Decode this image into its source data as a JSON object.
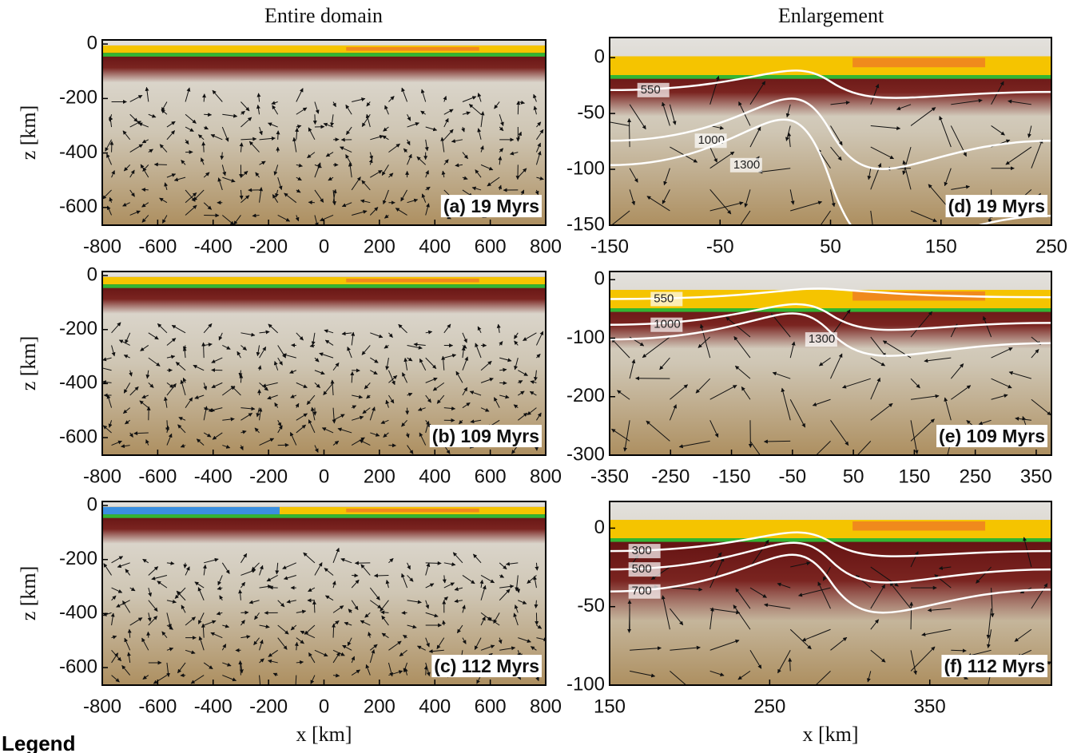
{
  "column_titles": [
    "Entire domain",
    "Enlargement"
  ],
  "legend_title": "Legend",
  "chart_data": [
    {
      "type": "field",
      "panel_label": "(a) 19 Myrs",
      "y_label": "z [km]",
      "xlim": [
        -800,
        800
      ],
      "ylim": [
        -665,
        15
      ],
      "xticks": [
        -800,
        -600,
        -400,
        -200,
        0,
        200,
        400,
        600,
        800
      ],
      "yticks": [
        0,
        -200,
        -400,
        -600
      ]
    },
    {
      "type": "field",
      "panel_label": "(b) 109 Myrs",
      "y_label": "z [km]",
      "xlim": [
        -800,
        800
      ],
      "ylim": [
        -665,
        15
      ],
      "xticks": [
        -800,
        -600,
        -400,
        -200,
        0,
        200,
        400,
        600,
        800
      ],
      "yticks": [
        0,
        -200,
        -400,
        -600
      ]
    },
    {
      "type": "field",
      "panel_label": "(c) 112 Myrs",
      "y_label": "z [km]",
      "x_label": "x [km]",
      "xlim": [
        -800,
        800
      ],
      "ylim": [
        -665,
        15
      ],
      "xticks": [
        -800,
        -600,
        -400,
        -200,
        0,
        200,
        400,
        600,
        800
      ],
      "yticks": [
        0,
        -200,
        -400,
        -600
      ]
    },
    {
      "type": "field",
      "panel_label": "(d) 19 Myrs",
      "xlim": [
        -150,
        250
      ],
      "ylim": [
        -150,
        18
      ],
      "xticks": [
        -150,
        -50,
        50,
        150,
        250
      ],
      "yticks": [
        0,
        -50,
        -100,
        -150
      ],
      "contours": [
        "550",
        "1000",
        "1300"
      ]
    },
    {
      "type": "field",
      "panel_label": "(e) 109 Myrs",
      "xlim": [
        -350,
        375
      ],
      "ylim": [
        -300,
        14
      ],
      "xticks": [
        -350,
        -250,
        -150,
        -50,
        50,
        150,
        250,
        350
      ],
      "yticks": [
        0,
        -100,
        -200,
        -300
      ],
      "contours": [
        "550",
        "1000",
        "1300"
      ]
    },
    {
      "type": "field",
      "panel_label": "(f) 112 Myrs",
      "x_label": "x [km]",
      "xlim": [
        150,
        426
      ],
      "ylim": [
        -100,
        17
      ],
      "xticks": [
        150,
        250,
        350
      ],
      "yticks": [
        0,
        -50,
        -100
      ],
      "contours": [
        "300",
        "500",
        "700"
      ]
    }
  ]
}
